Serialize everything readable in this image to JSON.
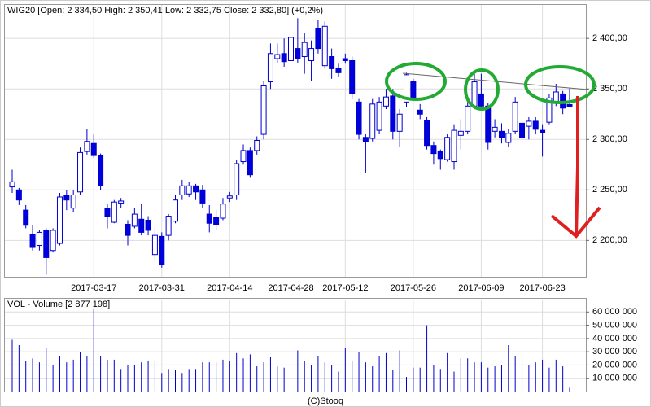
{
  "chart_data": {
    "type": "candlestick",
    "title": "WIG20 [Open: 2 334,50 High: 2 350,41 Low: 2 332,75 Close: 2 332,80] (+0,2%)",
    "footer": "(C)Stooq",
    "up_color": "#ffffff",
    "down_color": "#0000dd",
    "line_color": "#0000cc",
    "grid": true,
    "x": [
      "2017-03-01",
      "2017-03-02",
      "2017-03-03",
      "2017-03-06",
      "2017-03-07",
      "2017-03-08",
      "2017-03-09",
      "2017-03-10",
      "2017-03-13",
      "2017-03-14",
      "2017-03-15",
      "2017-03-16",
      "2017-03-17",
      "2017-03-20",
      "2017-03-21",
      "2017-03-22",
      "2017-03-23",
      "2017-03-24",
      "2017-03-27",
      "2017-03-28",
      "2017-03-29",
      "2017-03-30",
      "2017-03-31",
      "2017-04-03",
      "2017-04-04",
      "2017-04-05",
      "2017-04-06",
      "2017-04-07",
      "2017-04-10",
      "2017-04-11",
      "2017-04-12",
      "2017-04-13",
      "2017-04-14",
      "2017-04-18",
      "2017-04-19",
      "2017-04-20",
      "2017-04-21",
      "2017-04-24",
      "2017-04-25",
      "2017-04-26",
      "2017-04-27",
      "2017-04-28",
      "2017-05-02",
      "2017-05-04",
      "2017-05-05",
      "2017-05-08",
      "2017-05-09",
      "2017-05-10",
      "2017-05-11",
      "2017-05-12",
      "2017-05-15",
      "2017-05-16",
      "2017-05-17",
      "2017-05-18",
      "2017-05-19",
      "2017-05-22",
      "2017-05-23",
      "2017-05-24",
      "2017-05-25",
      "2017-05-26",
      "2017-05-29",
      "2017-05-30",
      "2017-05-31",
      "2017-06-01",
      "2017-06-02",
      "2017-06-05",
      "2017-06-06",
      "2017-06-07",
      "2017-06-08",
      "2017-06-09",
      "2017-06-12",
      "2017-06-13",
      "2017-06-14",
      "2017-06-16",
      "2017-06-19",
      "2017-06-20",
      "2017-06-21",
      "2017-06-22",
      "2017-06-23",
      "2017-06-26",
      "2017-06-27",
      "2017-06-28",
      "2017-06-29"
    ],
    "open": [
      2253,
      2250,
      2230,
      2206,
      2195,
      2210,
      2190,
      2197,
      2245,
      2232,
      2248,
      2288,
      2296,
      2284,
      2232,
      2218,
      2237,
      2216,
      2214,
      2221,
      2220,
      2186,
      2204,
      2205,
      2219,
      2245,
      2246,
      2254,
      2250,
      2226,
      2223,
      2222,
      2242,
      2245,
      2278,
      2289,
      2289,
      2305,
      2357,
      2380,
      2385,
      2378,
      2390,
      2382,
      2378,
      2410,
      2373,
      2382,
      2370,
      2380,
      2378,
      2337,
      2302,
      2301,
      2309,
      2333,
      2343,
      2308,
      2337,
      2357,
      2329,
      2319,
      2294,
      2288,
      2280,
      2278,
      2304,
      2308,
      2333,
      2345,
      2333,
      2308,
      2308,
      2297,
      2308,
      2316,
      2313,
      2318,
      2309,
      2317,
      2337,
      2345,
      2334.5
    ],
    "high": [
      2270,
      2252,
      2235,
      2215,
      2210,
      2212,
      2212,
      2247,
      2250,
      2250,
      2292,
      2310,
      2305,
      2286,
      2236,
      2240,
      2242,
      2220,
      2232,
      2236,
      2224,
      2212,
      2208,
      2226,
      2245,
      2260,
      2258,
      2256,
      2255,
      2235,
      2230,
      2242,
      2248,
      2280,
      2295,
      2292,
      2303,
      2358,
      2395,
      2395,
      2400,
      2410,
      2420,
      2405,
      2398,
      2418,
      2417,
      2390,
      2375,
      2385,
      2382,
      2340,
      2305,
      2340,
      2342,
      2350,
      2350,
      2330,
      2366,
      2360,
      2335,
      2322,
      2298,
      2290,
      2305,
      2315,
      2320,
      2338,
      2365,
      2365,
      2336,
      2320,
      2316,
      2310,
      2342,
      2320,
      2322,
      2322,
      2315,
      2345,
      2355,
      2348,
      2350.41
    ],
    "low": [
      2247,
      2235,
      2212,
      2190,
      2190,
      2166,
      2188,
      2195,
      2230,
      2228,
      2245,
      2285,
      2282,
      2250,
      2212,
      2217,
      2232,
      2195,
      2212,
      2205,
      2205,
      2180,
      2173,
      2200,
      2217,
      2240,
      2243,
      2240,
      2232,
      2208,
      2210,
      2220,
      2238,
      2240,
      2275,
      2262,
      2285,
      2300,
      2350,
      2376,
      2372,
      2375,
      2376,
      2365,
      2358,
      2385,
      2370,
      2360,
      2362,
      2375,
      2340,
      2300,
      2267,
      2298,
      2305,
      2330,
      2300,
      2293,
      2332,
      2338,
      2320,
      2290,
      2275,
      2270,
      2278,
      2270,
      2290,
      2305,
      2330,
      2330,
      2290,
      2302,
      2296,
      2293,
      2305,
      2298,
      2300,
      2305,
      2283,
      2315,
      2333,
      2325,
      2332.75
    ],
    "close": [
      2258,
      2240,
      2215,
      2193,
      2208,
      2183,
      2210,
      2243,
      2240,
      2245,
      2287,
      2298,
      2284,
      2254,
      2224,
      2238,
      2239,
      2205,
      2226,
      2208,
      2210,
      2205,
      2176,
      2224,
      2240,
      2254,
      2254,
      2248,
      2237,
      2217,
      2216,
      2236,
      2244,
      2276,
      2289,
      2265,
      2299,
      2353,
      2385,
      2384,
      2377,
      2401,
      2380,
      2396,
      2390,
      2390,
      2412,
      2370,
      2366,
      2378,
      2345,
      2305,
      2298,
      2335,
      2337,
      2342,
      2308,
      2325,
      2364,
      2341,
      2325,
      2294,
      2286,
      2281,
      2302,
      2309,
      2308,
      2333,
      2357,
      2333,
      2297,
      2312,
      2302,
      2306,
      2337,
      2302,
      2318,
      2310,
      2307,
      2341,
      2347,
      2331,
      2332.8
    ],
    "ylim": [
      2164,
      2434
    ],
    "yticks": [
      {
        "value": 2200,
        "label": "2 200,00"
      },
      {
        "value": 2250,
        "label": "2 250,00"
      },
      {
        "value": 2300,
        "label": "2 300,00"
      },
      {
        "value": 2350,
        "label": "2 350,00"
      },
      {
        "value": 2400,
        "label": "2 400,00"
      }
    ],
    "xticks": [
      "2017-03-17",
      "2017-03-31",
      "2017-04-14",
      "2017-04-28",
      "2017-05-12",
      "2017-05-26",
      "2017-06-09",
      "2017-06-23"
    ],
    "volume": {
      "title": "VOL - Volume [2 877 198]",
      "color": "#0000cc",
      "values": [
        39000000,
        35000000,
        23000000,
        25000000,
        22000000,
        33000000,
        20000000,
        27000000,
        22000000,
        24000000,
        30000000,
        27000000,
        62000000,
        27000000,
        24000000,
        24000000,
        17000000,
        20000000,
        20000000,
        22000000,
        23000000,
        23000000,
        14000000,
        17000000,
        16000000,
        14000000,
        17000000,
        17000000,
        22000000,
        22000000,
        22000000,
        24000000,
        23000000,
        29000000,
        25000000,
        28000000,
        19000000,
        22000000,
        26000000,
        19000000,
        18000000,
        25000000,
        31000000,
        23000000,
        20000000,
        27000000,
        22000000,
        20000000,
        15000000,
        33000000,
        23000000,
        30000000,
        22000000,
        19000000,
        27000000,
        29000000,
        16000000,
        31000000,
        11000000,
        18000000,
        18000000,
        50000000,
        20000000,
        17000000,
        29000000,
        15000000,
        25000000,
        25000000,
        22000000,
        22000000,
        18000000,
        19000000,
        20000000,
        35000000,
        27000000,
        27000000,
        20000000,
        22000000,
        24000000,
        18000000,
        24000000,
        19000000,
        2877198
      ],
      "ylim": [
        0,
        70000000
      ],
      "yticks": [
        {
          "value": 10000000,
          "label": "10 000 000"
        },
        {
          "value": 20000000,
          "label": "20 000 000"
        },
        {
          "value": 30000000,
          "label": "30 000 000"
        },
        {
          "value": 40000000,
          "label": "40 000 000"
        },
        {
          "value": 50000000,
          "label": "50 000 000"
        },
        {
          "value": 60000000,
          "label": "60 000 000"
        }
      ]
    }
  }
}
